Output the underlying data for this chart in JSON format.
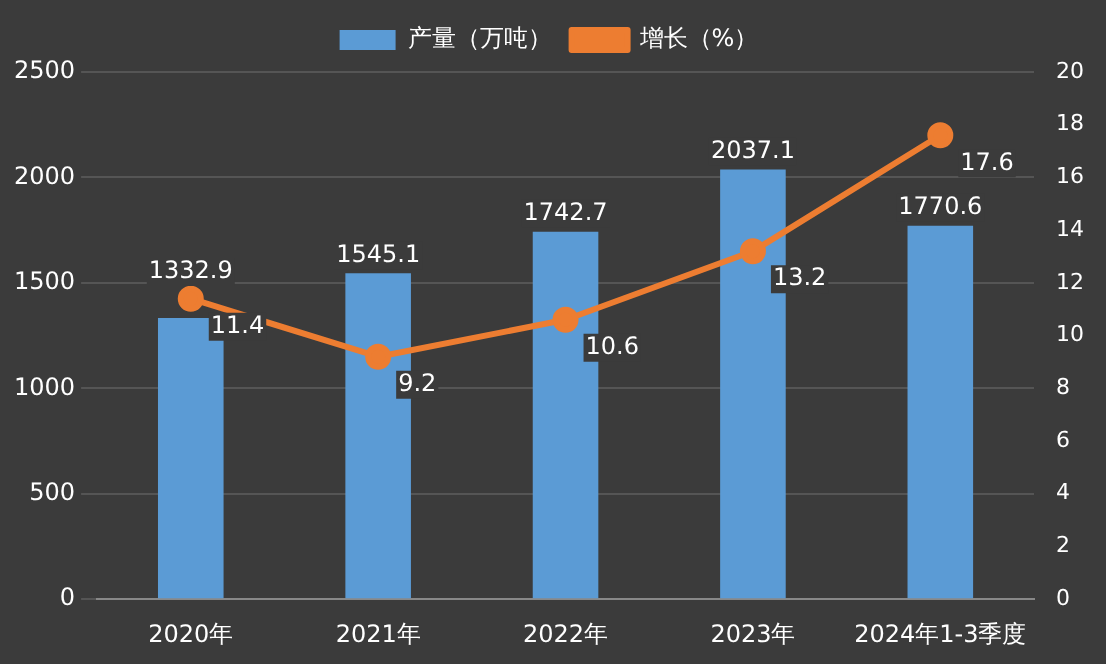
{
  "chart_data": {
    "type": "bar",
    "categories": [
      "2020年",
      "2021年",
      "2022年",
      "2023年",
      "2024年1-3季度"
    ],
    "series": [
      {
        "name": "产量（万吨）",
        "color": "#5b9bd5",
        "values": [
          1332.9,
          1545.1,
          1742.7,
          2037.1,
          1770.6
        ]
      },
      {
        "name": "增长（%）",
        "type": "line",
        "axis": "y2",
        "color": "#ed7d31",
        "values": [
          11.4,
          9.2,
          10.6,
          13.2,
          17.6
        ]
      }
    ],
    "ylim": [
      0,
      2500
    ],
    "yticks": [
      0,
      500,
      1000,
      1500,
      2000,
      2500
    ],
    "y2lim": [
      0,
      20
    ],
    "y2ticks": [
      0,
      2,
      4,
      6,
      8,
      10,
      12,
      14,
      16,
      18,
      20
    ],
    "grid": "y",
    "legend": "top",
    "marker": "circle",
    "data_labels": true
  }
}
